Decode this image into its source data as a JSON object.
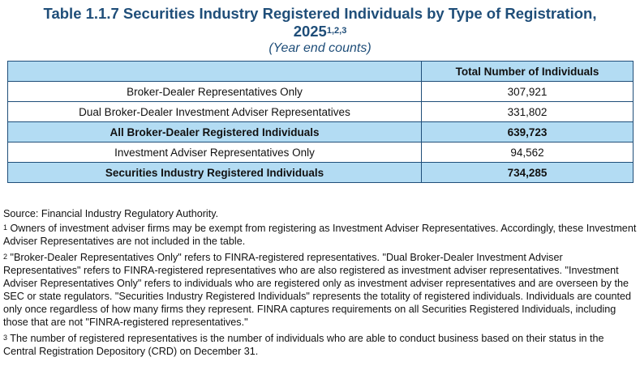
{
  "title": {
    "line1": "Table 1.1.7 Securities Industry Registered Individuals by Type of Registration,",
    "line2": "2025",
    "line2_sup": "1,2,3",
    "subtitle": "(Year end counts)"
  },
  "table": {
    "header": [
      "",
      "Total Number of Individuals"
    ],
    "rows": [
      {
        "label": "Broker-Dealer Representatives Only",
        "value": "307,921",
        "highlight": false
      },
      {
        "label": "Dual Broker-Dealer Investment Adviser Representatives",
        "value": "331,802",
        "highlight": false
      },
      {
        "label": "All Broker-Dealer Registered Individuals",
        "value": "639,723",
        "highlight": true
      },
      {
        "label": "Investment Adviser Representatives Only",
        "value": "94,562",
        "highlight": false
      },
      {
        "label": "Securities Industry Registered Individuals",
        "value": "734,285",
        "highlight": true
      }
    ]
  },
  "notes": {
    "source": "Source: Financial Industry Regulatory Authority.",
    "footnotes": [
      {
        "marker": "1",
        "text": " Owners of investment adviser firms may be exempt from registering as Investment Adviser Representatives. Accordingly, these Investment Adviser Representatives are not included in the table."
      },
      {
        "marker": "2",
        "text": " \"Broker-Dealer Representatives Only\" refers to FINRA-registered representatives. \"Dual Broker-Dealer Investment Adviser Representatives\" refers to FINRA-registered representatives who are also registered as investment adviser representatives. \"Investment Adviser Representatives Only\" refers to individuals who are registered only as investment adviser representatives and are overseen by the SEC or state regulators. \"Securities Industry Registered Individuals\" represents the totality of registered individuals. Individuals are counted only once regardless of how many firms they represent. FINRA captures requirements on all Securities Registered Individuals, including those that are not \"FINRA-registered representatives.\""
      },
      {
        "marker": "3",
        "text": " The number of registered representatives is the number of individuals who are able to conduct business based on their status in the Central Registration Depository (CRD) on December 31."
      }
    ]
  }
}
